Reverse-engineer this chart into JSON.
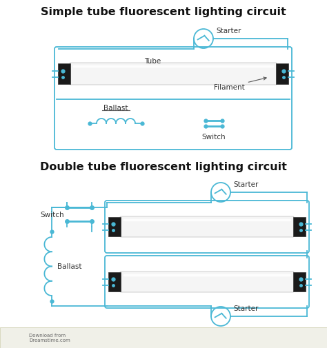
{
  "title1": "Simple tube fluorescent lighting circuit",
  "title2": "Double tube fluorescent lighting circuit",
  "bg_color": "#ffffff",
  "cc": "#4ab8d5",
  "title_fontsize": 11.5,
  "label_fontsize": 7.5,
  "watermark": "Download from\nDreamstime.com"
}
